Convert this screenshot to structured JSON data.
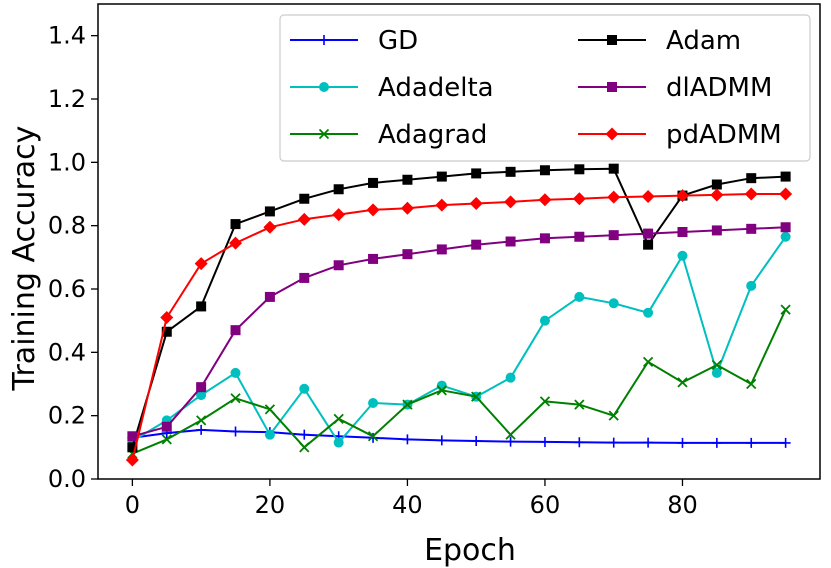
{
  "chart_data": {
    "type": "line",
    "title": "",
    "xlabel": "Epoch",
    "ylabel": "Training Accuracy",
    "xlim": [
      -5,
      100
    ],
    "ylim": [
      0.0,
      1.5
    ],
    "xticks": [
      0,
      20,
      40,
      60,
      80
    ],
    "yticks": [
      0.0,
      0.2,
      0.4,
      0.6,
      0.8,
      1.0,
      1.2,
      1.4
    ],
    "xtick_labels": [
      "0",
      "20",
      "40",
      "60",
      "80"
    ],
    "ytick_labels": [
      "0.0",
      "0.2",
      "0.4",
      "0.6",
      "0.8",
      "1.0",
      "1.2",
      "1.4"
    ],
    "grid": false,
    "legend_position": "top-right",
    "x": [
      0,
      5,
      10,
      15,
      20,
      25,
      30,
      35,
      40,
      45,
      50,
      55,
      60,
      65,
      70,
      75,
      80,
      85,
      90,
      95
    ],
    "series": [
      {
        "name": "GD",
        "color": "#0000ff",
        "marker": "plus",
        "values": [
          0.13,
          0.145,
          0.155,
          0.15,
          0.148,
          0.14,
          0.135,
          0.13,
          0.125,
          0.122,
          0.12,
          0.118,
          0.117,
          0.116,
          0.115,
          0.115,
          0.114,
          0.114,
          0.114,
          0.114
        ]
      },
      {
        "name": "Adadelta",
        "color": "#00bfbf",
        "marker": "circle",
        "values": [
          0.12,
          0.185,
          0.265,
          0.335,
          0.14,
          0.285,
          0.115,
          0.24,
          0.235,
          0.295,
          0.26,
          0.32,
          0.5,
          0.575,
          0.555,
          0.525,
          0.705,
          0.335,
          0.61,
          0.765
        ]
      },
      {
        "name": "Adagrad",
        "color": "#008000",
        "marker": "x",
        "values": [
          0.08,
          0.125,
          0.185,
          0.255,
          0.22,
          0.1,
          0.19,
          0.135,
          0.235,
          0.28,
          0.26,
          0.14,
          0.245,
          0.235,
          0.2,
          0.37,
          0.305,
          0.36,
          0.3,
          0.535
        ]
      },
      {
        "name": "Adam",
        "color": "#000000",
        "marker": "square",
        "values": [
          0.1,
          0.465,
          0.545,
          0.805,
          0.845,
          0.885,
          0.915,
          0.935,
          0.945,
          0.955,
          0.965,
          0.97,
          0.975,
          0.978,
          0.98,
          0.74,
          0.895,
          0.93,
          0.95,
          0.955
        ]
      },
      {
        "name": "dlADMM",
        "color": "#800080",
        "marker": "square",
        "values": [
          0.135,
          0.165,
          0.29,
          0.47,
          0.575,
          0.635,
          0.675,
          0.695,
          0.71,
          0.725,
          0.74,
          0.75,
          0.76,
          0.765,
          0.77,
          0.775,
          0.78,
          0.785,
          0.79,
          0.795
        ]
      },
      {
        "name": "pdADMM",
        "color": "#ff0000",
        "marker": "diamond",
        "values": [
          0.06,
          0.51,
          0.68,
          0.745,
          0.795,
          0.82,
          0.835,
          0.85,
          0.855,
          0.865,
          0.87,
          0.875,
          0.882,
          0.885,
          0.89,
          0.892,
          0.895,
          0.897,
          0.9,
          0.9
        ]
      }
    ]
  }
}
